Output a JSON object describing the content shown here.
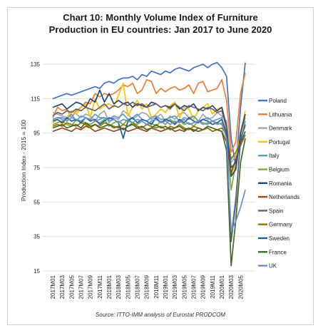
{
  "chart_data": {
    "type": "line",
    "title_line1": "Chart 10: Monthly Volume Index of Furniture",
    "title_line2": "Production in EU countries: Jan 2017 to June 2020",
    "ylabel": "Production Index - 2015 = 100",
    "source": "Source: ITTO-IMM analysis of Eurostat PRODCOM",
    "ylim": [
      15,
      140
    ],
    "y_ticks": [
      15,
      35,
      55,
      75,
      95,
      115,
      135
    ],
    "x_tick_labels": [
      "2017M01",
      "2017M03",
      "2017M05",
      "2017M07",
      "2017M09",
      "2017M11",
      "2018M01",
      "2018M03",
      "2018M05",
      "2018M07",
      "2018M09",
      "2018M11",
      "2019M01",
      "2019M03",
      "2019M05",
      "2019M07",
      "2019M09",
      "2019M11",
      "2020M01",
      "2020M03",
      "2020M05"
    ],
    "months": 42,
    "legend_position": "right",
    "grid": true,
    "series": [
      {
        "name": "Poland",
        "color": "#4472c4",
        "base": [
          115,
          116,
          117,
          118,
          117,
          118,
          119,
          120,
          121,
          122,
          121,
          124,
          125,
          124,
          126,
          127,
          127,
          128,
          126,
          129,
          128,
          131,
          130,
          129,
          131,
          130,
          132,
          133,
          132,
          131,
          133,
          134,
          135,
          133,
          135,
          136,
          133,
          128,
          92,
          75,
          110,
          136
        ]
      },
      {
        "name": "Lithuania",
        "color": "#ed7d31",
        "base": [
          104,
          110,
          108,
          109,
          104,
          108,
          110,
          113,
          112,
          118,
          116,
          118,
          117,
          118,
          120,
          123,
          122,
          124,
          118,
          120,
          126,
          125,
          118,
          121,
          119,
          121,
          122,
          120,
          121,
          123,
          118,
          124,
          125,
          119,
          120,
          121,
          126,
          114,
          84,
          90,
          118,
          130
        ]
      },
      {
        "name": "Denmark",
        "color": "#a5a5a5",
        "base": [
          107,
          106,
          105,
          104,
          108,
          106,
          104,
          106,
          105,
          102,
          106,
          108,
          101,
          104,
          103,
          108,
          106,
          103,
          105,
          107,
          106,
          103,
          104,
          106,
          102,
          105,
          103,
          106,
          107,
          104,
          105,
          102,
          106,
          103,
          104,
          107,
          105,
          102,
          78,
          82,
          95,
          104
        ]
      },
      {
        "name": "Portugal",
        "color": "#ffc000",
        "base": [
          101,
          103,
          100,
          104,
          108,
          106,
          110,
          112,
          104,
          115,
          109,
          111,
          112,
          110,
          117,
          124,
          105,
          110,
          114,
          109,
          112,
          104,
          106,
          109,
          107,
          111,
          113,
          104,
          110,
          109,
          103,
          108,
          110,
          112,
          106,
          109,
          110,
          96,
          70,
          80,
          96,
          108
        ]
      },
      {
        "name": "Italy",
        "color": "#5b9bd5",
        "base": [
          103,
          104,
          104,
          103,
          106,
          102,
          105,
          104,
          103,
          106,
          104,
          104,
          103,
          105,
          104,
          106,
          103,
          104,
          106,
          103,
          102,
          104,
          105,
          103,
          103,
          104,
          105,
          102,
          104,
          103,
          105,
          102,
          103,
          104,
          102,
          103,
          104,
          92,
          35,
          58,
          90,
          102
        ]
      },
      {
        "name": "Belgium",
        "color": "#70ad47",
        "base": [
          100,
          101,
          102,
          100,
          99,
          103,
          102,
          101,
          100,
          102,
          101,
          103,
          99,
          101,
          102,
          100,
          103,
          101,
          100,
          102,
          100,
          101,
          99,
          102,
          100,
          103,
          101,
          102,
          100,
          101,
          99,
          102,
          101,
          100,
          102,
          101,
          100,
          94,
          62,
          78,
          92,
          99
        ]
      },
      {
        "name": "Romania",
        "color": "#264478",
        "base": [
          110,
          111,
          112,
          109,
          111,
          113,
          112,
          110,
          115,
          113,
          120,
          113,
          118,
          112,
          114,
          112,
          113,
          110,
          112,
          111,
          110,
          113,
          112,
          110,
          111,
          110,
          112,
          109,
          111,
          110,
          112,
          108,
          110,
          109,
          111,
          108,
          110,
          99,
          70,
          74,
          95,
          106
        ]
      },
      {
        "name": "Netherlands",
        "color": "#9e480e",
        "base": [
          96,
          97,
          98,
          97,
          96,
          98,
          97,
          99,
          98,
          96,
          97,
          98,
          97,
          96,
          97,
          98,
          96,
          97,
          98,
          97,
          96,
          98,
          97,
          96,
          97,
          98,
          96,
          97,
          96,
          98,
          97,
          96,
          97,
          98,
          96,
          97,
          96,
          90,
          72,
          80,
          88,
          94
        ]
      },
      {
        "name": "Spain",
        "color": "#636363",
        "base": [
          105,
          107,
          106,
          108,
          107,
          109,
          108,
          110,
          109,
          108,
          110,
          112,
          109,
          111,
          110,
          112,
          111,
          113,
          111,
          112,
          110,
          111,
          112,
          110,
          111,
          109,
          112,
          110,
          108,
          111,
          110,
          109,
          108,
          110,
          109,
          107,
          108,
          98,
          32,
          55,
          92,
          100
        ]
      },
      {
        "name": "Germany",
        "color": "#997300",
        "base": [
          99,
          100,
          99,
          101,
          100,
          99,
          101,
          100,
          98,
          100,
          99,
          101,
          100,
          99,
          98,
          100,
          99,
          101,
          99,
          98,
          100,
          99,
          98,
          99,
          97,
          99,
          98,
          100,
          98,
          97,
          99,
          98,
          97,
          98,
          96,
          97,
          98,
          94,
          80,
          84,
          90,
          94
        ]
      },
      {
        "name": "Sweden",
        "color": "#255e91",
        "base": [
          102,
          103,
          101,
          104,
          102,
          103,
          101,
          104,
          102,
          103,
          100,
          102,
          104,
          103,
          101,
          92,
          102,
          104,
          101,
          103,
          102,
          100,
          104,
          101,
          103,
          102,
          100,
          103,
          101,
          104,
          102,
          101,
          103,
          102,
          100,
          101,
          103,
          95,
          75,
          78,
          90,
          96
        ]
      },
      {
        "name": "France",
        "color": "#43682b",
        "base": [
          98,
          99,
          100,
          98,
          99,
          100,
          98,
          101,
          99,
          100,
          98,
          99,
          100,
          98,
          99,
          97,
          99,
          100,
          98,
          99,
          97,
          98,
          100,
          98,
          99,
          97,
          98,
          99,
          97,
          98,
          96,
          98,
          97,
          99,
          98,
          97,
          96,
          85,
          18,
          45,
          78,
          92
        ]
      },
      {
        "name": "UK",
        "color": "#698ed0",
        "base": [
          103,
          104,
          103,
          102,
          104,
          103,
          102,
          104,
          103,
          102,
          103,
          104,
          102,
          103,
          101,
          103,
          102,
          101,
          103,
          102,
          100,
          102,
          103,
          101,
          102,
          100,
          102,
          101,
          103,
          100,
          101,
          102,
          100,
          101,
          102,
          100,
          101,
          92,
          38,
          44,
          52,
          62
        ]
      }
    ]
  }
}
